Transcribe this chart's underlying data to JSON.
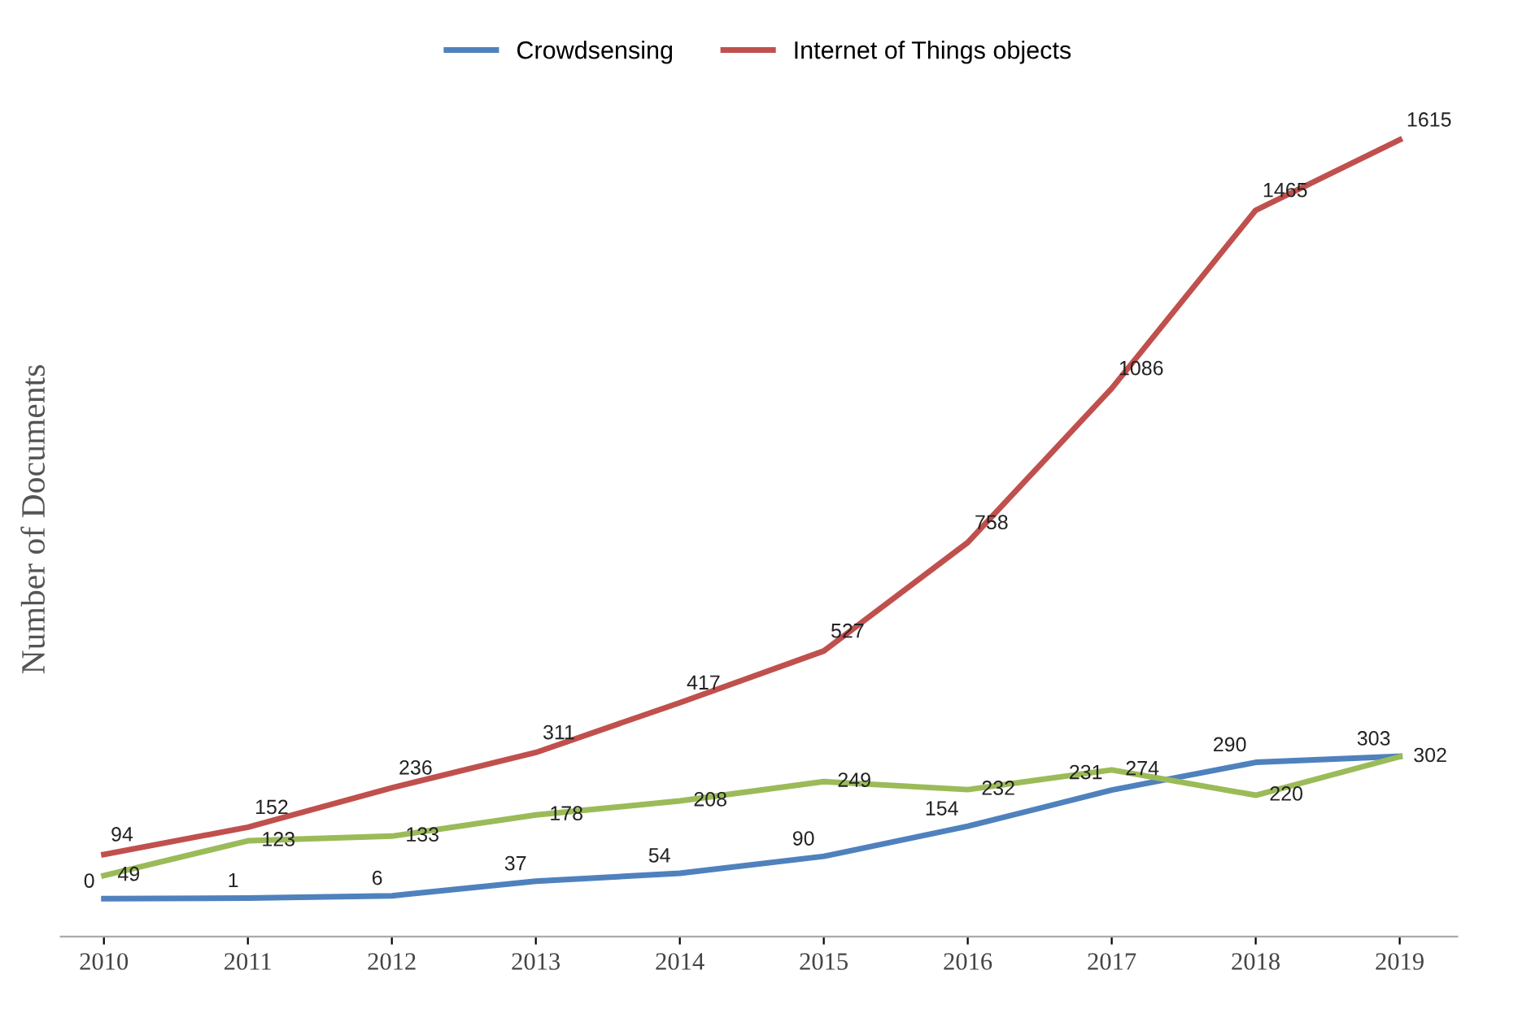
{
  "chart_data": {
    "type": "line",
    "ylabel": "Number of Documents",
    "categories": [
      "2010",
      "2011",
      "2012",
      "2013",
      "2014",
      "2015",
      "2016",
      "2017",
      "2018",
      "2019"
    ],
    "series": [
      {
        "name": "Crowdsensing",
        "color": "#4f81bd",
        "values": [
          0,
          1,
          6,
          37,
          54,
          90,
          154,
          231,
          290,
          303
        ]
      },
      {
        "name": "Internet of Things objects",
        "color": "#c0504d",
        "values": [
          94,
          152,
          236,
          311,
          417,
          527,
          758,
          1086,
          1465,
          1615
        ]
      },
      {
        "color": "#9bbb59",
        "values": [
          49,
          123,
          133,
          178,
          208,
          249,
          232,
          274,
          220,
          302
        ]
      }
    ],
    "data_labels": true,
    "legend": "top",
    "grid": false,
    "marker": "none",
    "line_style": "solid",
    "tick_labels": "x"
  }
}
